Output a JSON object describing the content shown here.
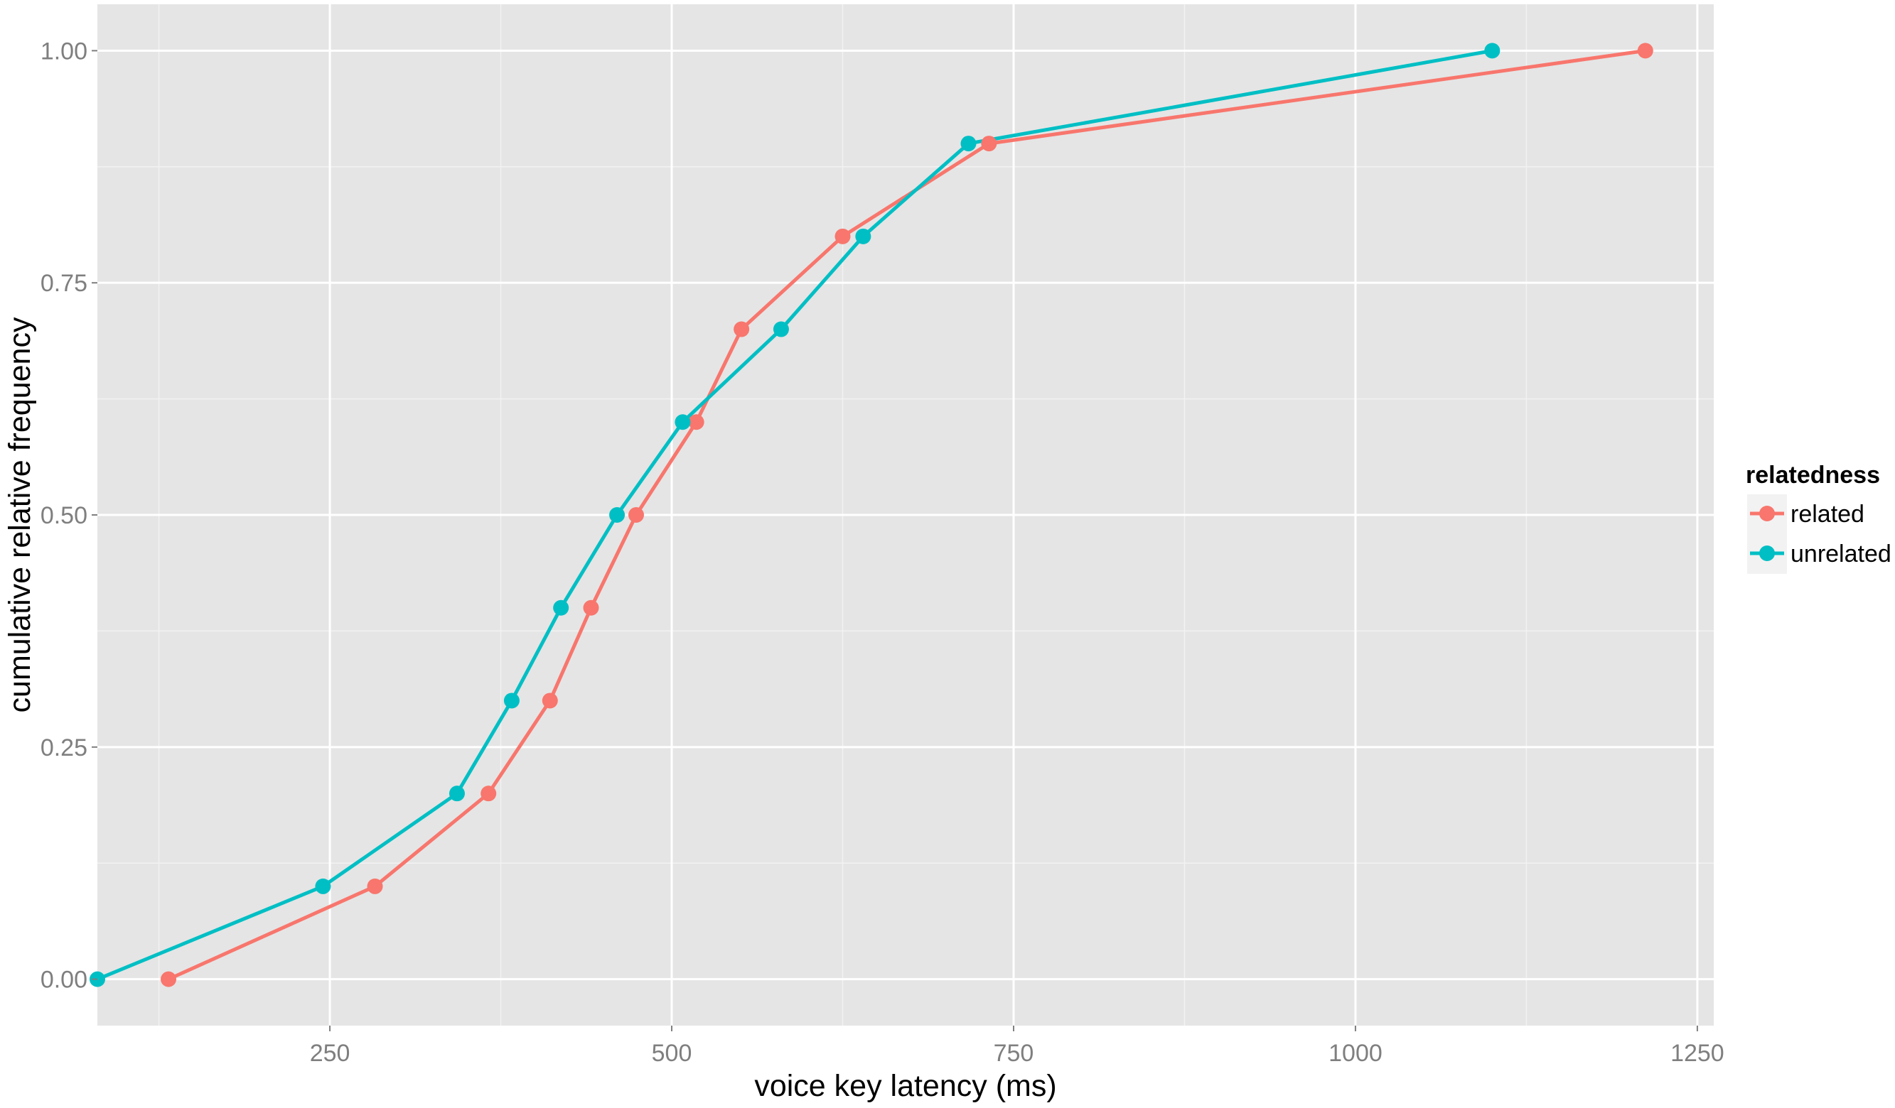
{
  "chart_data": {
    "type": "line",
    "xlabel": "voice key latency (ms)",
    "ylabel": "cumulative relative frequency",
    "xlim": [
      80,
      1262
    ],
    "ylim": [
      -0.05,
      1.05
    ],
    "x_ticks": [
      250,
      500,
      750,
      1000,
      1250
    ],
    "y_ticks": [
      0.0,
      0.25,
      0.5,
      0.75,
      1.0
    ],
    "x_tick_labels": [
      "250",
      "500",
      "750",
      "1000",
      "1250"
    ],
    "y_tick_labels": [
      "0.00",
      "0.25",
      "0.50",
      "0.75",
      "1.00"
    ],
    "grid": true,
    "legend": {
      "title": "relatedness",
      "position": "right",
      "entries": [
        "related",
        "unrelated"
      ]
    },
    "series": [
      {
        "name": "related",
        "color": "#f8766d",
        "x": [
          132,
          283,
          366,
          411,
          441,
          474,
          518,
          551,
          625,
          732,
          1212
        ],
        "y": [
          0.0,
          0.1,
          0.2,
          0.3,
          0.4,
          0.5,
          0.6,
          0.7,
          0.8,
          0.9,
          1.0
        ]
      },
      {
        "name": "unrelated",
        "color": "#00bfc4",
        "x": [
          80,
          245,
          343,
          383,
          419,
          460,
          508,
          580,
          640,
          717,
          1100
        ],
        "y": [
          0.0,
          0.1,
          0.2,
          0.3,
          0.4,
          0.5,
          0.6,
          0.7,
          0.8,
          0.9,
          1.0
        ]
      }
    ]
  }
}
